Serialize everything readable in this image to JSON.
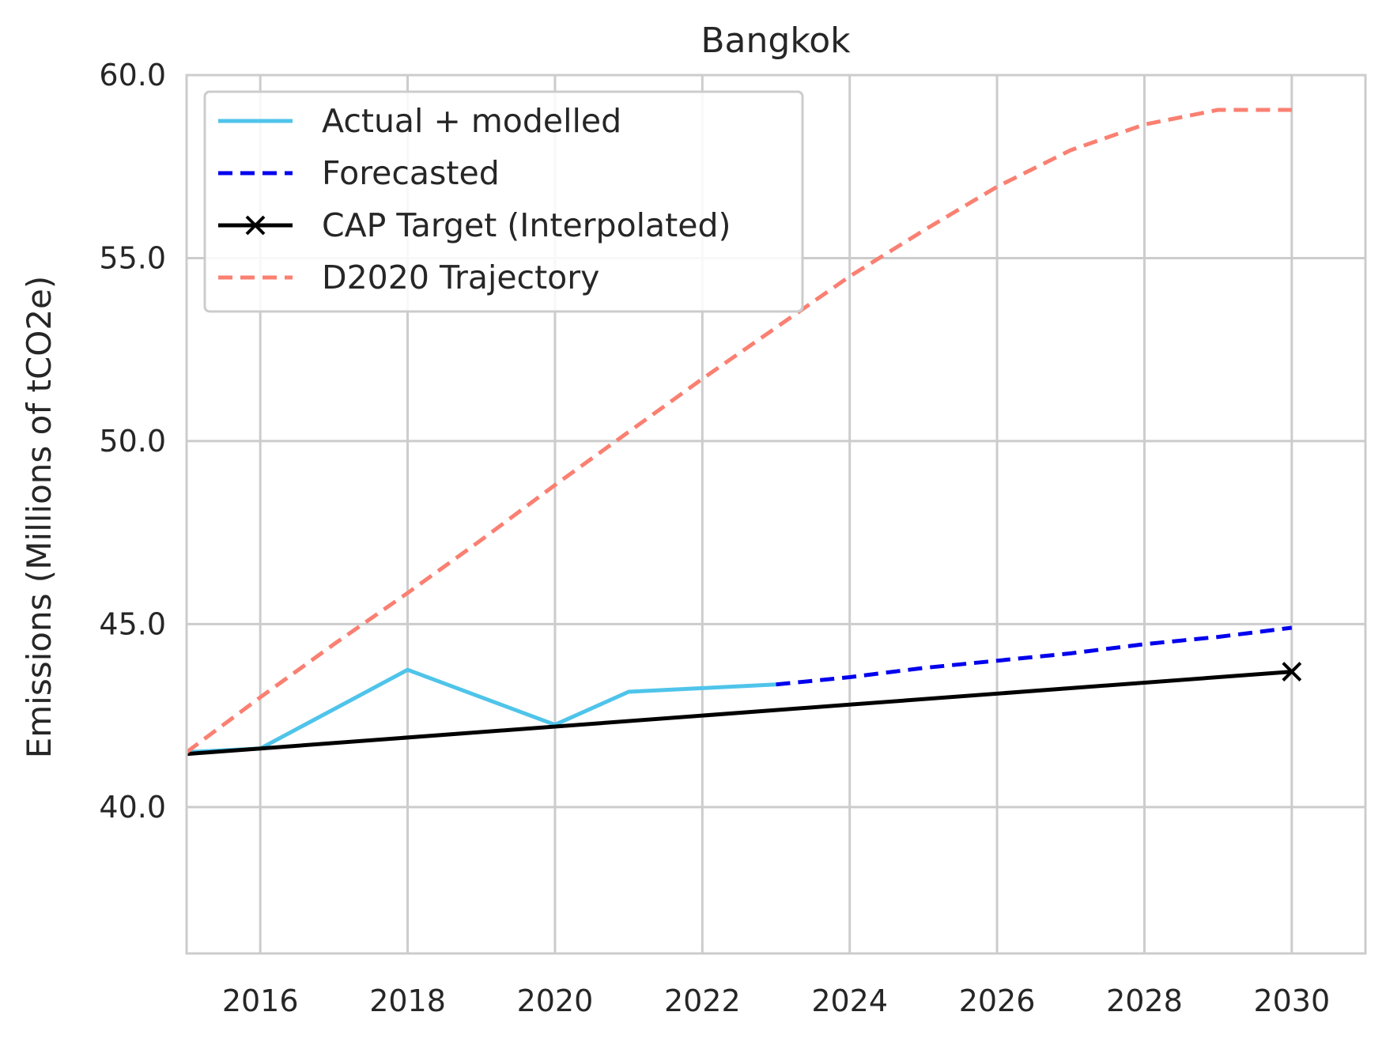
{
  "chart_data": {
    "type": "line",
    "title": "Bangkok",
    "xlabel": "",
    "ylabel": "Emissions (Millions of tCO2e)",
    "xlim": [
      2015,
      2031
    ],
    "ylim": [
      36.0,
      60.0
    ],
    "x_ticks": [
      2016,
      2018,
      2020,
      2022,
      2024,
      2026,
      2028,
      2030
    ],
    "y_ticks": [
      40.0,
      45.0,
      50.0,
      55.0,
      60.0
    ],
    "y_tick_labels": [
      "40.0",
      "45.0",
      "50.0",
      "55.0",
      "60.0"
    ],
    "grid": true,
    "legend_position": "top-left",
    "series": [
      {
        "name": "Actual + modelled",
        "style": "solid",
        "color": "#4fc4ea",
        "x": [
          2015,
          2016,
          2018,
          2020,
          2021,
          2022,
          2023
        ],
        "y": [
          41.5,
          41.6,
          43.75,
          42.25,
          43.15,
          43.25,
          43.35
        ]
      },
      {
        "name": "Forecasted",
        "style": "dashed",
        "color": "#0000ee",
        "x": [
          2023,
          2024,
          2025,
          2026,
          2027,
          2028,
          2029,
          2030
        ],
        "y": [
          43.35,
          43.55,
          43.8,
          44.0,
          44.2,
          44.45,
          44.65,
          44.9
        ]
      },
      {
        "name": "CAP Target (Interpolated)",
        "style": "solid",
        "color": "#000000",
        "marker": "x",
        "marker_at": [
          2030
        ],
        "x": [
          2015,
          2030
        ],
        "y": [
          41.45,
          43.7
        ]
      },
      {
        "name": "D2020 Trajectory",
        "style": "dashed",
        "color": "#fa8072",
        "x": [
          2015,
          2016,
          2017,
          2018,
          2019,
          2020,
          2021,
          2022,
          2023,
          2024,
          2025,
          2026,
          2027,
          2028,
          2029,
          2030
        ],
        "y": [
          41.5,
          43.0,
          44.45,
          45.85,
          47.3,
          48.8,
          50.25,
          51.7,
          53.1,
          54.5,
          55.75,
          56.95,
          57.95,
          58.65,
          59.05,
          59.05
        ]
      }
    ]
  }
}
